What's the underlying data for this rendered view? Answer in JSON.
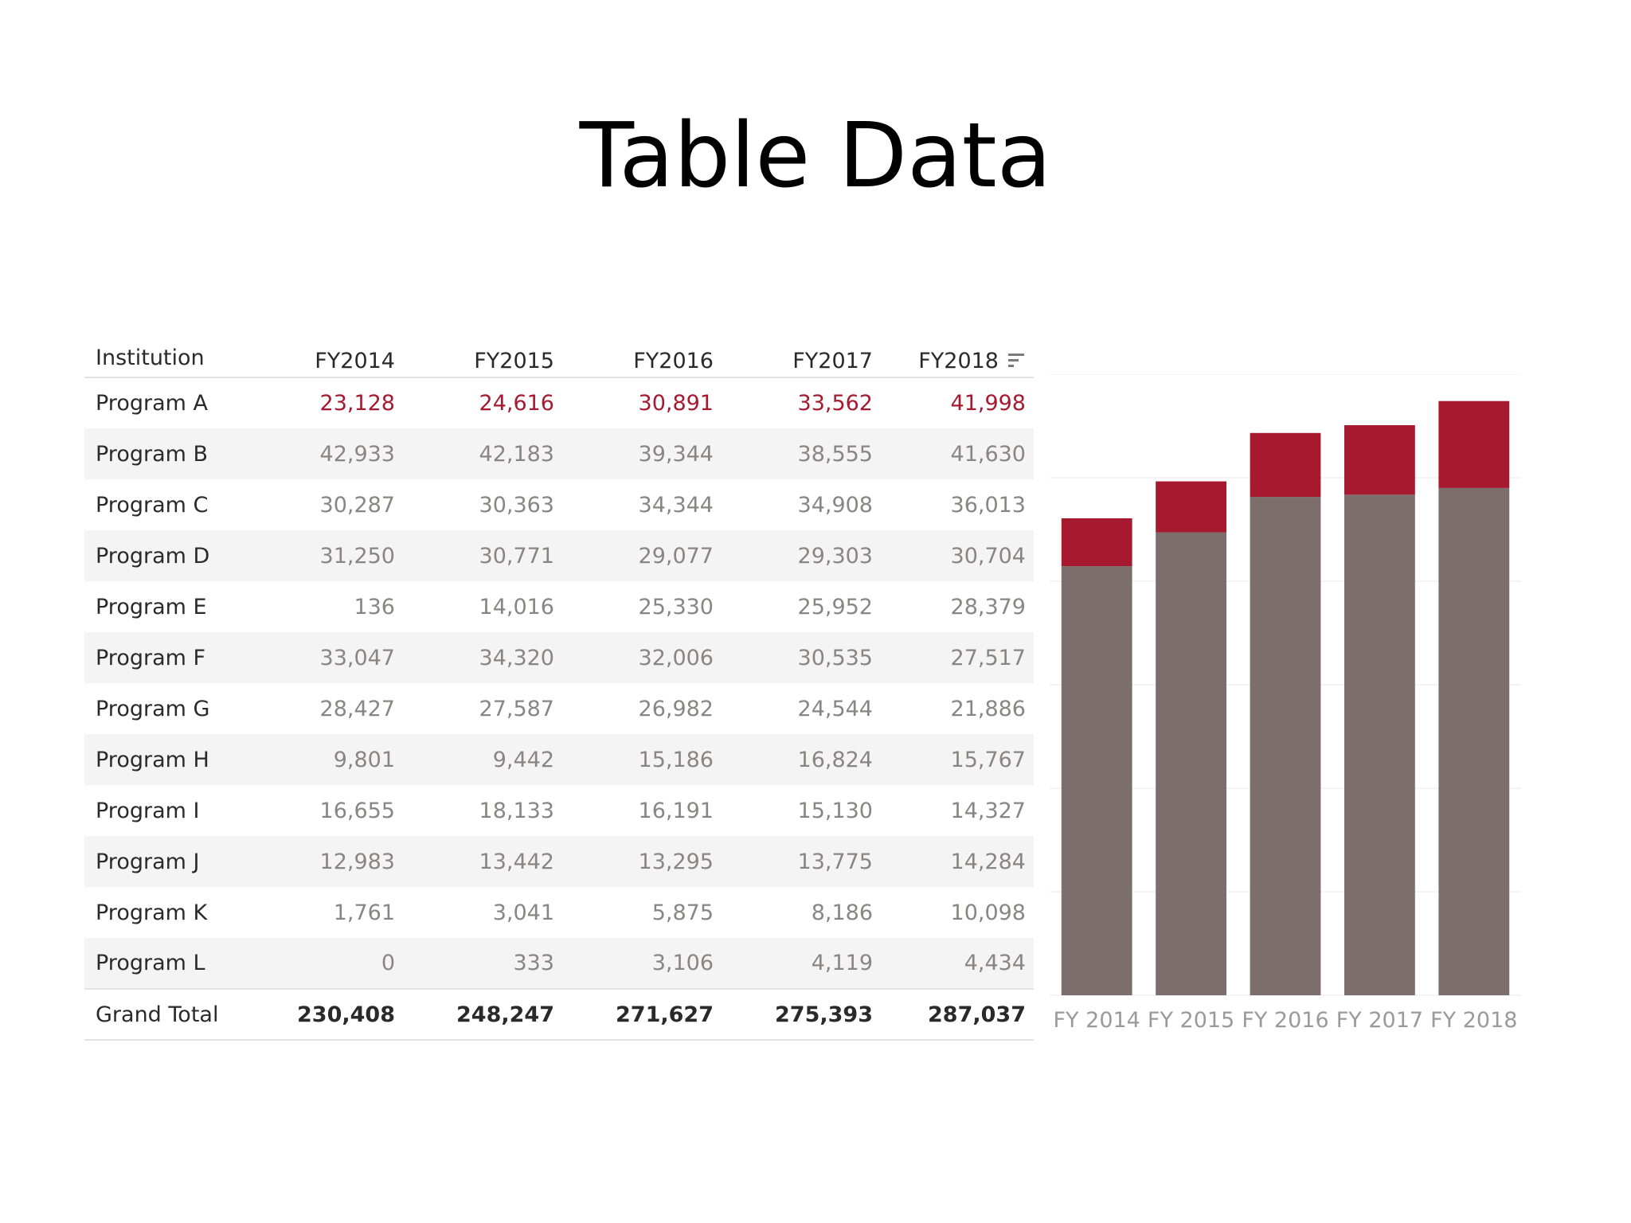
{
  "slide": {
    "title": "Table Data"
  },
  "table": {
    "columns": [
      "Institution",
      "FY2014",
      "FY2015",
      "FY2016",
      "FY2017",
      "FY2018"
    ],
    "sorted_column": "FY2018",
    "rows": [
      {
        "name": "Program A",
        "values": [
          "23,128",
          "24,616",
          "30,891",
          "33,562",
          "41,998"
        ],
        "highlight": true
      },
      {
        "name": "Program B",
        "values": [
          "42,933",
          "42,183",
          "39,344",
          "38,555",
          "41,630"
        ]
      },
      {
        "name": "Program C",
        "values": [
          "30,287",
          "30,363",
          "34,344",
          "34,908",
          "36,013"
        ]
      },
      {
        "name": "Program D",
        "values": [
          "31,250",
          "30,771",
          "29,077",
          "29,303",
          "30,704"
        ]
      },
      {
        "name": "Program E",
        "values": [
          "136",
          "14,016",
          "25,330",
          "25,952",
          "28,379"
        ]
      },
      {
        "name": "Program F",
        "values": [
          "33,047",
          "34,320",
          "32,006",
          "30,535",
          "27,517"
        ]
      },
      {
        "name": "Program G",
        "values": [
          "28,427",
          "27,587",
          "26,982",
          "24,544",
          "21,886"
        ]
      },
      {
        "name": "Program H",
        "values": [
          "9,801",
          "9,442",
          "15,186",
          "16,824",
          "15,767"
        ]
      },
      {
        "name": "Program I",
        "values": [
          "16,655",
          "18,133",
          "16,191",
          "15,130",
          "14,327"
        ]
      },
      {
        "name": "Program J",
        "values": [
          "12,983",
          "13,442",
          "13,295",
          "13,775",
          "14,284"
        ]
      },
      {
        "name": "Program K",
        "values": [
          "1,761",
          "3,041",
          "5,875",
          "8,186",
          "10,098"
        ]
      },
      {
        "name": "Program L",
        "values": [
          "0",
          "333",
          "3,106",
          "4,119",
          "4,434"
        ]
      }
    ],
    "total": {
      "name": "Grand Total",
      "values": [
        "230,408",
        "248,247",
        "271,627",
        "275,393",
        "287,037"
      ]
    }
  },
  "chart_data": {
    "type": "bar",
    "stacked": true,
    "categories": [
      "FY 2014",
      "FY 2015",
      "FY 2016",
      "FY 2017",
      "FY 2018"
    ],
    "series": [
      {
        "values": [
          207280,
          223631,
          240736,
          241831,
          245039
        ],
        "color": "#7b6e6c"
      },
      {
        "values": [
          23128,
          24616,
          30891,
          33562,
          41998
        ],
        "color": "#a6192e"
      }
    ],
    "ylim": [
      0,
      300000
    ],
    "grid": true,
    "gridline_color": "#f4f4f4",
    "tick_label_color": "#9a9a9a"
  },
  "colors": {
    "highlight": "#a6192e",
    "base_bar": "#7b6e6c",
    "row_stripe": "#f4f4f4"
  }
}
